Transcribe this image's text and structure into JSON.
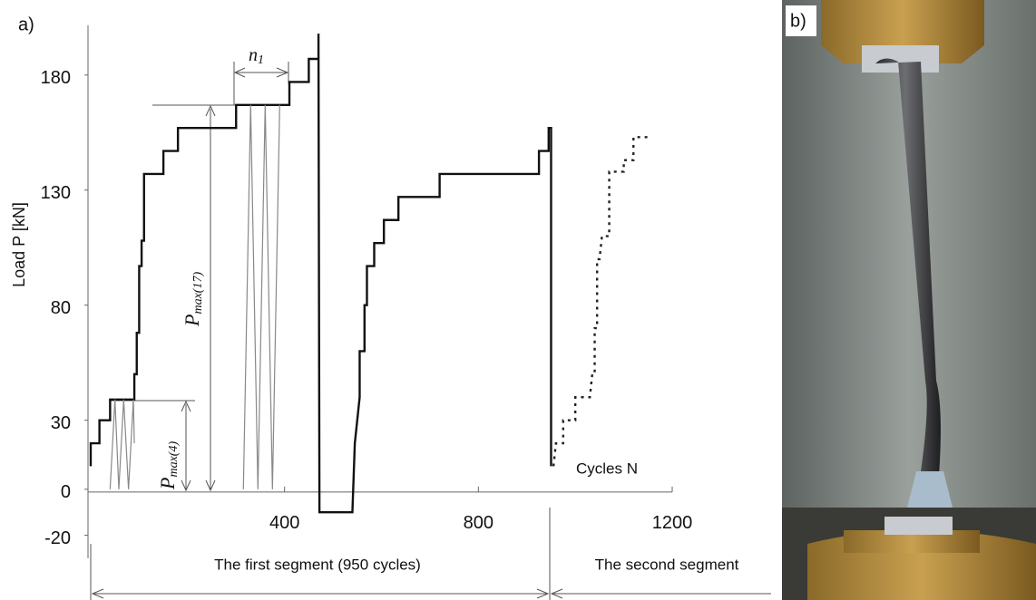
{
  "chart_data": {
    "type": "line",
    "panel_labels": [
      "a)",
      "b)"
    ],
    "ylabel": "Load P  [kN]",
    "xlabel": "Cycles N",
    "xlim": [
      0,
      1200
    ],
    "ylim": [
      -30,
      200
    ],
    "xticks": [
      400,
      800,
      1200
    ],
    "yticks": [
      -20,
      0,
      30,
      80,
      130,
      180
    ],
    "annotations": {
      "n1": {
        "text": "n",
        "sub": "1"
      },
      "pmax17": {
        "text": "P",
        "sub": "max(17)"
      },
      "pmax4": {
        "text": "P",
        "sub": "max(4)"
      },
      "segment1": "The first segment  (950 cycles)",
      "segment2": "The second segment"
    },
    "series": [
      {
        "color": "#111111",
        "style": "solid",
        "width": 2.4,
        "x": [
          0,
          0,
          18,
          18,
          40,
          40,
          90,
          90,
          95,
          95,
          100,
          100,
          105,
          105,
          110,
          110,
          150,
          150,
          180,
          180,
          300,
          300,
          410,
          410,
          450,
          450,
          470,
          470,
          472,
          540,
          545,
          555,
          555,
          565,
          565,
          570,
          570,
          585,
          585,
          605,
          605,
          635,
          635,
          720,
          720,
          925,
          925,
          945,
          945,
          950,
          950
        ],
        "values": [
          10,
          20,
          20,
          30,
          30,
          39,
          39,
          50,
          50,
          68,
          68,
          97,
          97,
          108,
          108,
          137,
          137,
          147,
          147,
          157,
          157,
          167,
          167,
          177,
          177,
          187,
          187,
          198,
          -10,
          -10,
          20,
          40,
          60,
          60,
          80,
          80,
          97,
          97,
          107,
          107,
          117,
          117,
          127,
          127,
          137,
          137,
          147,
          147,
          157,
          157,
          10
        ]
      },
      {
        "color": "#888888",
        "style": "solid",
        "width": 1.2,
        "x": [
          40,
          50,
          58,
          68,
          78,
          88,
          90,
          300,
          315,
          330,
          345,
          360,
          375,
          390
        ],
        "values": [
          0,
          39,
          0,
          39,
          0,
          39,
          20,
          null,
          0,
          167,
          0,
          167,
          0,
          167
        ]
      },
      {
        "color": "#222222",
        "style": "dashed",
        "width": 2.4,
        "x": [
          955,
          960,
          975,
          975,
          1000,
          1000,
          1030,
          1035,
          1040,
          1040,
          1045,
          1045,
          1050,
          1055,
          1070,
          1070,
          1100,
          1100,
          1120,
          1120,
          1150
        ],
        "values": [
          10,
          20,
          20,
          30,
          30,
          40,
          40,
          50,
          50,
          70,
          70,
          100,
          100,
          110,
          110,
          138,
          138,
          143,
          143,
          153,
          153
        ]
      }
    ]
  }
}
